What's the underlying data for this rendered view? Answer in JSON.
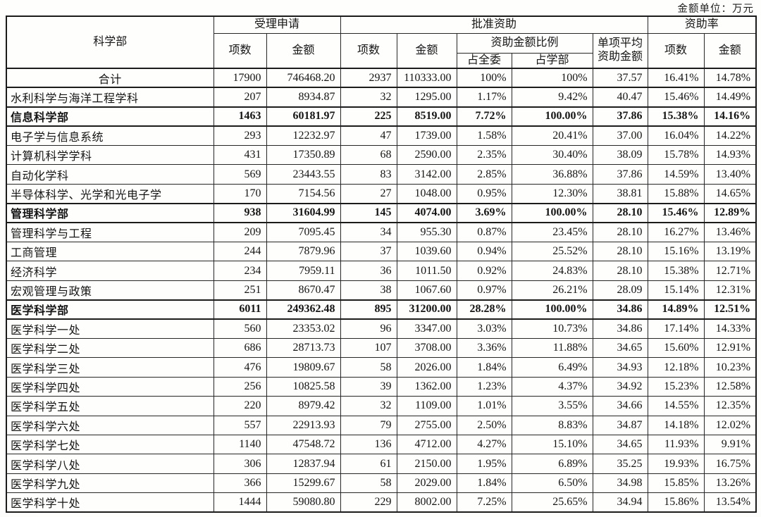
{
  "page": {
    "unit_label": "金额单位：万元"
  },
  "colors": {
    "border": "#1b1b1b",
    "text": "#151515",
    "page_background": "#fefefd"
  },
  "table": {
    "header": {
      "department": "科学部",
      "accepted_group": "受理申请",
      "approved_group": "批准资助",
      "rate_group": "资助率",
      "count": "项数",
      "amount": "金额",
      "ratio_group": "资助金额比例",
      "pct_committee": "占全委",
      "pct_department": "占学部",
      "avg_amount": "单项平均资助金额"
    },
    "rows": [
      {
        "name": "合计",
        "style": "total",
        "values": [
          "17900",
          "746468.20",
          "2937",
          "110333.00",
          "100%",
          "100%",
          "37.57",
          "16.41%",
          "14.78%"
        ]
      },
      {
        "name": "水利科学与海洋工程学科",
        "style": "normal",
        "values": [
          "207",
          "8934.87",
          "32",
          "1295.00",
          "1.17%",
          "9.42%",
          "40.47",
          "15.46%",
          "14.49%"
        ]
      },
      {
        "name": "信息科学部",
        "style": "section",
        "values": [
          "1463",
          "60181.97",
          "225",
          "8519.00",
          "7.72%",
          "100.00%",
          "37.86",
          "15.38%",
          "14.16%"
        ]
      },
      {
        "name": "电子学与信息系统",
        "style": "normal",
        "values": [
          "293",
          "12232.97",
          "47",
          "1739.00",
          "1.58%",
          "20.41%",
          "37.00",
          "16.04%",
          "14.22%"
        ]
      },
      {
        "name": "计算机科学学科",
        "style": "normal",
        "values": [
          "431",
          "17350.89",
          "68",
          "2590.00",
          "2.35%",
          "30.40%",
          "38.09",
          "15.78%",
          "14.93%"
        ]
      },
      {
        "name": "自动化学科",
        "style": "normal",
        "values": [
          "569",
          "23443.55",
          "83",
          "3142.00",
          "2.85%",
          "36.88%",
          "37.86",
          "14.59%",
          "13.40%"
        ]
      },
      {
        "name": "半导体科学、光学和光电子学",
        "style": "normal",
        "values": [
          "170",
          "7154.56",
          "27",
          "1048.00",
          "0.95%",
          "12.30%",
          "38.81",
          "15.88%",
          "14.65%"
        ]
      },
      {
        "name": "管理科学部",
        "style": "section",
        "values": [
          "938",
          "31604.99",
          "145",
          "4074.00",
          "3.69%",
          "100.00%",
          "28.10",
          "15.46%",
          "12.89%"
        ]
      },
      {
        "name": "管理科学与工程",
        "style": "normal",
        "values": [
          "209",
          "7095.45",
          "34",
          "955.30",
          "0.87%",
          "23.45%",
          "28.10",
          "16.27%",
          "13.46%"
        ]
      },
      {
        "name": "工商管理",
        "style": "normal",
        "values": [
          "244",
          "7879.96",
          "37",
          "1039.60",
          "0.94%",
          "25.52%",
          "28.10",
          "15.16%",
          "13.19%"
        ]
      },
      {
        "name": "经济科学",
        "style": "normal",
        "values": [
          "234",
          "7959.11",
          "36",
          "1011.50",
          "0.92%",
          "24.83%",
          "28.10",
          "15.38%",
          "12.71%"
        ]
      },
      {
        "name": "宏观管理与政策",
        "style": "normal",
        "values": [
          "251",
          "8670.47",
          "38",
          "1067.60",
          "0.97%",
          "26.21%",
          "28.09",
          "15.14%",
          "12.31%"
        ]
      },
      {
        "name": "医学科学部",
        "style": "section",
        "values": [
          "6011",
          "249362.48",
          "895",
          "31200.00",
          "28.28%",
          "100.00%",
          "34.86",
          "14.89%",
          "12.51%"
        ]
      },
      {
        "name": "医学科学一处",
        "style": "normal",
        "values": [
          "560",
          "23353.02",
          "96",
          "3347.00",
          "3.03%",
          "10.73%",
          "34.86",
          "17.14%",
          "14.33%"
        ]
      },
      {
        "name": "医学科学二处",
        "style": "normal",
        "values": [
          "686",
          "28713.73",
          "107",
          "3708.00",
          "3.36%",
          "11.88%",
          "34.65",
          "15.60%",
          "12.91%"
        ]
      },
      {
        "name": "医学科学三处",
        "style": "normal",
        "values": [
          "476",
          "19809.67",
          "58",
          "2026.00",
          "1.84%",
          "6.49%",
          "34.93",
          "12.18%",
          "10.23%"
        ]
      },
      {
        "name": "医学科学四处",
        "style": "normal",
        "values": [
          "256",
          "10825.58",
          "39",
          "1362.00",
          "1.23%",
          "4.37%",
          "34.92",
          "15.23%",
          "12.58%"
        ]
      },
      {
        "name": "医学科学五处",
        "style": "normal",
        "values": [
          "220",
          "8979.42",
          "32",
          "1109.00",
          "1.01%",
          "3.55%",
          "34.66",
          "14.55%",
          "12.35%"
        ]
      },
      {
        "name": "医学科学六处",
        "style": "normal",
        "values": [
          "557",
          "22913.93",
          "79",
          "2755.00",
          "2.50%",
          "8.83%",
          "34.87",
          "14.18%",
          "12.02%"
        ]
      },
      {
        "name": "医学科学七处",
        "style": "normal",
        "values": [
          "1140",
          "47548.72",
          "136",
          "4712.00",
          "4.27%",
          "15.10%",
          "34.65",
          "11.93%",
          "9.91%"
        ]
      },
      {
        "name": "医学科学八处",
        "style": "normal",
        "values": [
          "306",
          "12837.94",
          "61",
          "2150.00",
          "1.95%",
          "6.89%",
          "35.25",
          "19.93%",
          "16.75%"
        ]
      },
      {
        "name": "医学科学九处",
        "style": "normal",
        "values": [
          "366",
          "15299.67",
          "58",
          "2029.00",
          "1.84%",
          "6.50%",
          "34.98",
          "15.85%",
          "13.26%"
        ]
      },
      {
        "name": "医学科学十处",
        "style": "normal",
        "values": [
          "1444",
          "59080.80",
          "229",
          "8002.00",
          "7.25%",
          "25.65%",
          "34.94",
          "15.86%",
          "13.54%"
        ]
      }
    ]
  }
}
